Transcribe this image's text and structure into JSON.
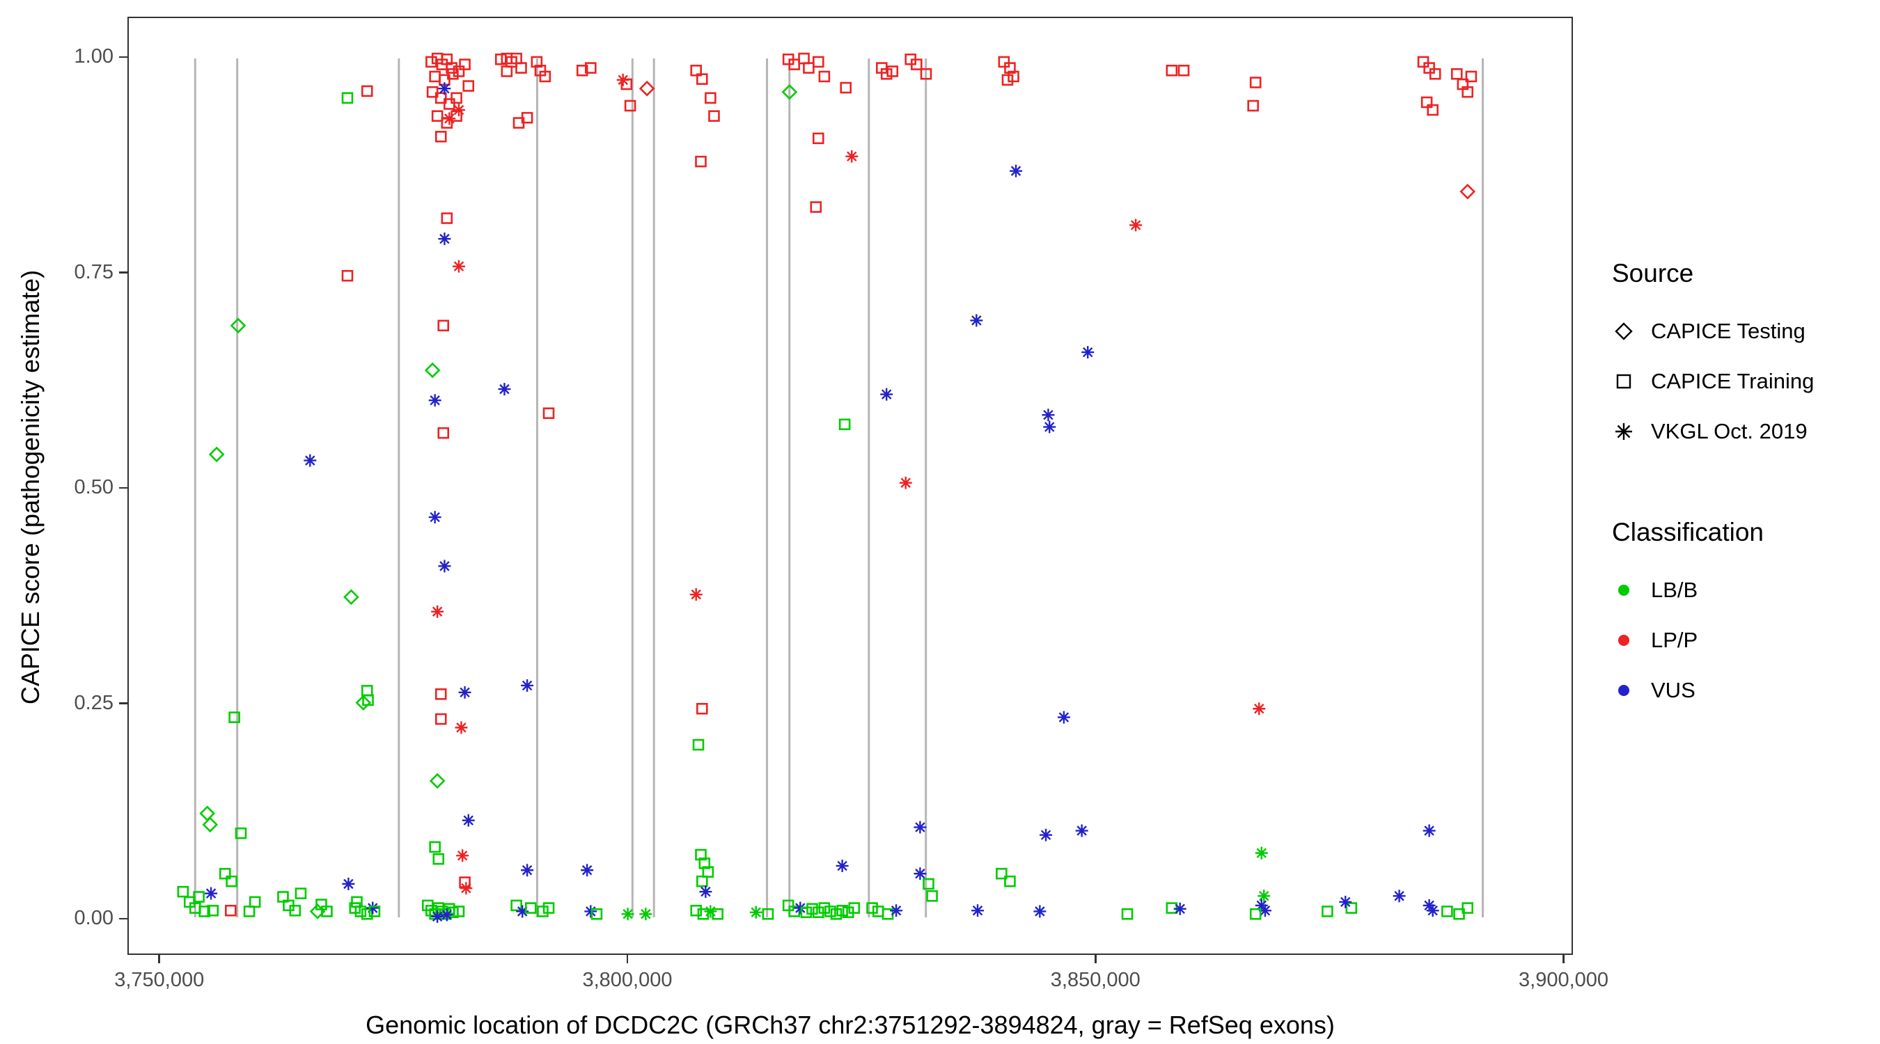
{
  "axes": {
    "x_title": "Genomic location of DCDC2C (GRCh37 chr2:3751292-3894824, gray = RefSeq exons)",
    "y_title": "CAPICE score (pathogenicity estimate)"
  },
  "legend": {
    "source_title": "Source",
    "source_items": [
      {
        "label": "CAPICE Testing",
        "marker": "diamond"
      },
      {
        "label": "CAPICE Training",
        "marker": "square"
      },
      {
        "label": "VKGL Oct. 2019",
        "marker": "asterisk"
      }
    ],
    "class_title": "Classification",
    "class_items": [
      {
        "label": "LB/B",
        "color": "#00CC00"
      },
      {
        "label": "LP/P",
        "color": "#EE2222"
      },
      {
        "label": "VUS",
        "color": "#2222CC"
      }
    ]
  },
  "chart_data": {
    "type": "scatter",
    "title": "",
    "xlabel": "Genomic location of DCDC2C (GRCh37 chr2:3751292-3894824, gray = RefSeq exons)",
    "ylabel": "CAPICE score (pathogenicity estimate)",
    "xlim": [
      3746600,
      3901000
    ],
    "ylim": [
      -0.042,
      1.047
    ],
    "grid": false,
    "legend_position": "right",
    "x_ticks": [
      {
        "v": 3750000,
        "label": "3,750,000"
      },
      {
        "v": 3800000,
        "label": "3,800,000"
      },
      {
        "v": 3850000,
        "label": "3,850,000"
      },
      {
        "v": 3900000,
        "label": "3,900,000"
      }
    ],
    "y_ticks": [
      {
        "v": 0.0,
        "label": "0.00"
      },
      {
        "v": 0.25,
        "label": "0.25"
      },
      {
        "v": 0.5,
        "label": "0.50"
      },
      {
        "v": 0.75,
        "label": "0.75"
      },
      {
        "v": 1.0,
        "label": "1.00"
      }
    ],
    "exon_color": "#b5b5b5",
    "exons_x": [
      3753700,
      3758200,
      3775500,
      3790300,
      3800500,
      3802800,
      3814900,
      3817300,
      3825800,
      3831900,
      3891500
    ],
    "source_codes": {
      "d": "CAPICE Testing",
      "s": "CAPICE Training",
      "a": "VKGL Oct. 2019"
    },
    "marker_shapes": {
      "d": "diamond",
      "s": "square",
      "a": "asterisk"
    },
    "class_codes": {
      "g": "LB/B",
      "r": "LP/P",
      "b": "VUS"
    },
    "colors": {
      "g": "#00CC00",
      "r": "#EE2222",
      "b": "#2222CC"
    },
    "points": [
      [
        3752400,
        0.03,
        "s",
        "g"
      ],
      [
        3753100,
        0.018,
        "s",
        "g"
      ],
      [
        3753700,
        0.011,
        "s",
        "g"
      ],
      [
        3754100,
        0.024,
        "s",
        "g"
      ],
      [
        3754700,
        0.007,
        "s",
        "g"
      ],
      [
        3755400,
        0.028,
        "a",
        "b"
      ],
      [
        3755600,
        0.008,
        "s",
        "g"
      ],
      [
        3755000,
        0.121,
        "d",
        "g"
      ],
      [
        3755300,
        0.108,
        "d",
        "g"
      ],
      [
        3756000,
        0.539,
        "d",
        "g"
      ],
      [
        3758300,
        0.689,
        "d",
        "g"
      ],
      [
        3757900,
        0.233,
        "s",
        "g"
      ],
      [
        3758600,
        0.098,
        "s",
        "g"
      ],
      [
        3756900,
        0.051,
        "s",
        "g"
      ],
      [
        3757600,
        0.042,
        "s",
        "g"
      ],
      [
        3757500,
        0.008,
        "s",
        "r"
      ],
      [
        3759500,
        0.007,
        "s",
        "g"
      ],
      [
        3760100,
        0.018,
        "s",
        "g"
      ],
      [
        3763100,
        0.024,
        "s",
        "g"
      ],
      [
        3763700,
        0.014,
        "s",
        "g"
      ],
      [
        3764400,
        0.008,
        "s",
        "g"
      ],
      [
        3765000,
        0.028,
        "s",
        "g"
      ],
      [
        3766000,
        0.532,
        "a",
        "b"
      ],
      [
        3766800,
        0.007,
        "d",
        "g"
      ],
      [
        3767200,
        0.015,
        "s",
        "g"
      ],
      [
        3767800,
        0.007,
        "s",
        "g"
      ],
      [
        3770000,
        0.954,
        "s",
        "g"
      ],
      [
        3772100,
        0.962,
        "s",
        "r"
      ],
      [
        3770000,
        0.747,
        "s",
        "r"
      ],
      [
        3770400,
        0.373,
        "d",
        "g"
      ],
      [
        3771700,
        0.25,
        "d",
        "g"
      ],
      [
        3772100,
        0.264,
        "s",
        "g"
      ],
      [
        3772200,
        0.253,
        "s",
        "g"
      ],
      [
        3770100,
        0.039,
        "a",
        "b"
      ],
      [
        3770800,
        0.011,
        "s",
        "g"
      ],
      [
        3771400,
        0.007,
        "s",
        "g"
      ],
      [
        3772100,
        0.004,
        "s",
        "g"
      ],
      [
        3772700,
        0.011,
        "a",
        "b"
      ],
      [
        3771000,
        0.018,
        "s",
        "g"
      ],
      [
        3772900,
        0.007,
        "s",
        "g"
      ],
      [
        3778970,
        0.996,
        "s",
        "r"
      ],
      [
        3779620,
        1.0,
        "s",
        "r"
      ],
      [
        3780130,
        0.993,
        "s",
        "r"
      ],
      [
        3780640,
        0.999,
        "s",
        "r"
      ],
      [
        3781150,
        0.989,
        "s",
        "r"
      ],
      [
        3779360,
        0.979,
        "s",
        "r"
      ],
      [
        3780390,
        0.975,
        "s",
        "r"
      ],
      [
        3781280,
        0.982,
        "s",
        "r"
      ],
      [
        3781920,
        0.985,
        "s",
        "r"
      ],
      [
        3779100,
        0.961,
        "s",
        "r"
      ],
      [
        3780000,
        0.954,
        "s",
        "r"
      ],
      [
        3780900,
        0.947,
        "s",
        "r"
      ],
      [
        3781670,
        0.954,
        "s",
        "r"
      ],
      [
        3782560,
        0.993,
        "s",
        "r"
      ],
      [
        3782950,
        0.968,
        "s",
        "r"
      ],
      [
        3779620,
        0.933,
        "s",
        "r"
      ],
      [
        3780640,
        0.925,
        "s",
        "r"
      ],
      [
        3781670,
        0.933,
        "s",
        "r"
      ],
      [
        3780000,
        0.909,
        "s",
        "r"
      ],
      [
        3780390,
        0.965,
        "a",
        "b"
      ],
      [
        3780900,
        0.93,
        "a",
        "r"
      ],
      [
        3781920,
        0.94,
        "a",
        "r"
      ],
      [
        3780640,
        0.814,
        "s",
        "r"
      ],
      [
        3780390,
        0.79,
        "a",
        "b"
      ],
      [
        3781920,
        0.758,
        "a",
        "r"
      ],
      [
        3779100,
        0.637,
        "d",
        "g"
      ],
      [
        3780260,
        0.689,
        "s",
        "r"
      ],
      [
        3779360,
        0.602,
        "a",
        "b"
      ],
      [
        3780260,
        0.564,
        "s",
        "r"
      ],
      [
        3779360,
        0.466,
        "a",
        "b"
      ],
      [
        3780390,
        0.409,
        "a",
        "b"
      ],
      [
        3779620,
        0.356,
        "a",
        "r"
      ],
      [
        3780000,
        0.26,
        "s",
        "r"
      ],
      [
        3782560,
        0.262,
        "a",
        "b"
      ],
      [
        3780000,
        0.231,
        "s",
        "r"
      ],
      [
        3782180,
        0.221,
        "a",
        "r"
      ],
      [
        3779620,
        0.159,
        "d",
        "g"
      ],
      [
        3782950,
        0.113,
        "a",
        "b"
      ],
      [
        3782310,
        0.072,
        "a",
        "r"
      ],
      [
        3779360,
        0.082,
        "s",
        "g"
      ],
      [
        3779740,
        0.068,
        "s",
        "g"
      ],
      [
        3782560,
        0.041,
        "s",
        "r"
      ],
      [
        3782690,
        0.034,
        "a",
        "r"
      ],
      [
        3778590,
        0.014,
        "s",
        "g"
      ],
      [
        3778970,
        0.008,
        "s",
        "g"
      ],
      [
        3779360,
        0.004,
        "s",
        "g"
      ],
      [
        3779740,
        0.011,
        "s",
        "g"
      ],
      [
        3780130,
        0.007,
        "s",
        "g"
      ],
      [
        3780510,
        0.004,
        "s",
        "g"
      ],
      [
        3780900,
        0.01,
        "s",
        "g"
      ],
      [
        3781280,
        0.006,
        "s",
        "g"
      ],
      [
        3779620,
        0.001,
        "a",
        "b"
      ],
      [
        3780640,
        0.003,
        "a",
        "b"
      ],
      [
        3781920,
        0.007,
        "s",
        "g"
      ],
      [
        3786410,
        0.999,
        "s",
        "r"
      ],
      [
        3787050,
        1.0,
        "s",
        "r"
      ],
      [
        3787560,
        0.996,
        "s",
        "r"
      ],
      [
        3788080,
        1.0,
        "s",
        "r"
      ],
      [
        3788590,
        0.989,
        "s",
        "r"
      ],
      [
        3787050,
        0.985,
        "s",
        "r"
      ],
      [
        3789230,
        0.931,
        "s",
        "r"
      ],
      [
        3788330,
        0.925,
        "s",
        "r"
      ],
      [
        3790260,
        0.996,
        "s",
        "r"
      ],
      [
        3790640,
        0.986,
        "s",
        "r"
      ],
      [
        3791150,
        0.979,
        "s",
        "r"
      ],
      [
        3791540,
        0.587,
        "s",
        "r"
      ],
      [
        3786800,
        0.615,
        "a",
        "b"
      ],
      [
        3789230,
        0.27,
        "a",
        "b"
      ],
      [
        3789230,
        0.055,
        "a",
        "b"
      ],
      [
        3788080,
        0.014,
        "s",
        "g"
      ],
      [
        3788720,
        0.007,
        "a",
        "b"
      ],
      [
        3789620,
        0.011,
        "s",
        "g"
      ],
      [
        3790900,
        0.007,
        "s",
        "g"
      ],
      [
        3791540,
        0.011,
        "s",
        "g"
      ],
      [
        3795130,
        0.986,
        "s",
        "r"
      ],
      [
        3796030,
        0.989,
        "s",
        "r"
      ],
      [
        3795640,
        0.055,
        "a",
        "b"
      ],
      [
        3796030,
        0.007,
        "a",
        "b"
      ],
      [
        3796670,
        0.004,
        "s",
        "g"
      ],
      [
        3799490,
        0.975,
        "a",
        "r"
      ],
      [
        3799870,
        0.97,
        "s",
        "r"
      ],
      [
        3800260,
        0.945,
        "s",
        "r"
      ],
      [
        3802050,
        0.965,
        "d",
        "r"
      ],
      [
        3800000,
        0.004,
        "a",
        "g"
      ],
      [
        3801920,
        0.004,
        "a",
        "g"
      ],
      [
        3807310,
        0.986,
        "s",
        "r"
      ],
      [
        3807950,
        0.976,
        "s",
        "r"
      ],
      [
        3808850,
        0.954,
        "s",
        "r"
      ],
      [
        3809230,
        0.933,
        "s",
        "r"
      ],
      [
        3807820,
        0.88,
        "s",
        "r"
      ],
      [
        3807310,
        0.376,
        "a",
        "r"
      ],
      [
        3807950,
        0.243,
        "s",
        "r"
      ],
      [
        3807560,
        0.201,
        "s",
        "g"
      ],
      [
        3807820,
        0.073,
        "s",
        "g"
      ],
      [
        3808210,
        0.063,
        "s",
        "g"
      ],
      [
        3808590,
        0.053,
        "s",
        "g"
      ],
      [
        3807950,
        0.042,
        "s",
        "g"
      ],
      [
        3808330,
        0.03,
        "a",
        "b"
      ],
      [
        3807310,
        0.008,
        "s",
        "g"
      ],
      [
        3808080,
        0.004,
        "s",
        "g"
      ],
      [
        3808850,
        0.007,
        "a",
        "g"
      ],
      [
        3809620,
        0.004,
        "s",
        "g"
      ],
      [
        3813720,
        0.006,
        "a",
        "g"
      ],
      [
        3815000,
        0.004,
        "s",
        "g"
      ],
      [
        3817310,
        0.961,
        "d",
        "g"
      ],
      [
        3817180,
        0.999,
        "s",
        "r"
      ],
      [
        3817820,
        0.993,
        "s",
        "r"
      ],
      [
        3818850,
        1.0,
        "s",
        "r"
      ],
      [
        3819360,
        0.989,
        "s",
        "r"
      ],
      [
        3820390,
        0.996,
        "s",
        "r"
      ],
      [
        3821030,
        0.979,
        "s",
        "r"
      ],
      [
        3823330,
        0.966,
        "s",
        "r"
      ],
      [
        3820390,
        0.907,
        "s",
        "r"
      ],
      [
        3820130,
        0.827,
        "s",
        "r"
      ],
      [
        3823970,
        0.886,
        "a",
        "r"
      ],
      [
        3823210,
        0.574,
        "s",
        "g"
      ],
      [
        3822950,
        0.06,
        "a",
        "b"
      ],
      [
        3817180,
        0.014,
        "s",
        "g"
      ],
      [
        3817820,
        0.007,
        "s",
        "g"
      ],
      [
        3818460,
        0.011,
        "a",
        "b"
      ],
      [
        3819100,
        0.006,
        "s",
        "g"
      ],
      [
        3819740,
        0.01,
        "s",
        "g"
      ],
      [
        3820390,
        0.006,
        "s",
        "g"
      ],
      [
        3821030,
        0.011,
        "s",
        "g"
      ],
      [
        3821670,
        0.007,
        "s",
        "g"
      ],
      [
        3822310,
        0.004,
        "s",
        "g"
      ],
      [
        3822950,
        0.008,
        "s",
        "g"
      ],
      [
        3823590,
        0.006,
        "s",
        "g"
      ],
      [
        3824230,
        0.011,
        "s",
        "g"
      ],
      [
        3827180,
        0.989,
        "s",
        "r"
      ],
      [
        3828330,
        0.985,
        "s",
        "r"
      ],
      [
        3827690,
        0.982,
        "s",
        "r"
      ],
      [
        3827690,
        0.609,
        "a",
        "b"
      ],
      [
        3826150,
        0.011,
        "s",
        "g"
      ],
      [
        3826800,
        0.007,
        "s",
        "g"
      ],
      [
        3827820,
        0.004,
        "s",
        "g"
      ],
      [
        3828720,
        0.008,
        "a",
        "b"
      ],
      [
        3830260,
        0.999,
        "s",
        "r"
      ],
      [
        3830900,
        0.993,
        "s",
        "r"
      ],
      [
        3831920,
        0.982,
        "s",
        "r"
      ],
      [
        3829740,
        0.506,
        "a",
        "r"
      ],
      [
        3831280,
        0.105,
        "a",
        "b"
      ],
      [
        3831280,
        0.051,
        "a",
        "b"
      ],
      [
        3832180,
        0.039,
        "s",
        "g"
      ],
      [
        3832560,
        0.025,
        "s",
        "g"
      ],
      [
        3837310,
        0.695,
        "a",
        "b"
      ],
      [
        3837440,
        0.008,
        "a",
        "b"
      ],
      [
        3840260,
        0.996,
        "s",
        "r"
      ],
      [
        3840900,
        0.989,
        "s",
        "r"
      ],
      [
        3841280,
        0.979,
        "s",
        "r"
      ],
      [
        3840640,
        0.975,
        "s",
        "r"
      ],
      [
        3840000,
        0.051,
        "s",
        "g"
      ],
      [
        3840900,
        0.042,
        "s",
        "g"
      ],
      [
        3841540,
        0.869,
        "a",
        "b"
      ],
      [
        3844100,
        0.007,
        "a",
        "b"
      ],
      [
        3845000,
        0.585,
        "a",
        "b"
      ],
      [
        3845130,
        0.571,
        "a",
        "b"
      ],
      [
        3846670,
        0.233,
        "a",
        "b"
      ],
      [
        3844740,
        0.096,
        "a",
        "b"
      ],
      [
        3848590,
        0.101,
        "a",
        "b"
      ],
      [
        3849230,
        0.658,
        "a",
        "b"
      ],
      [
        3854360,
        0.806,
        "a",
        "r"
      ],
      [
        3853460,
        0.004,
        "s",
        "g"
      ],
      [
        3858210,
        0.986,
        "s",
        "r"
      ],
      [
        3859490,
        0.986,
        "s",
        "r"
      ],
      [
        3858210,
        0.011,
        "s",
        "g"
      ],
      [
        3859100,
        0.01,
        "a",
        "b"
      ],
      [
        3867180,
        0.972,
        "s",
        "r"
      ],
      [
        3866920,
        0.945,
        "s",
        "r"
      ],
      [
        3867560,
        0.243,
        "a",
        "r"
      ],
      [
        3867820,
        0.075,
        "a",
        "g"
      ],
      [
        3868080,
        0.025,
        "a",
        "g"
      ],
      [
        3867820,
        0.014,
        "a",
        "b"
      ],
      [
        3868210,
        0.008,
        "a",
        "b"
      ],
      [
        3867180,
        0.004,
        "s",
        "g"
      ],
      [
        3874870,
        0.007,
        "s",
        "g"
      ],
      [
        3877440,
        0.011,
        "s",
        "g"
      ],
      [
        3876800,
        0.018,
        "a",
        "b"
      ],
      [
        3882560,
        0.025,
        "a",
        "b"
      ],
      [
        3885770,
        0.101,
        "a",
        "b"
      ],
      [
        3885130,
        0.996,
        "s",
        "r"
      ],
      [
        3885770,
        0.989,
        "s",
        "r"
      ],
      [
        3886410,
        0.982,
        "s",
        "r"
      ],
      [
        3885510,
        0.949,
        "s",
        "r"
      ],
      [
        3886150,
        0.94,
        "s",
        "r"
      ],
      [
        3888720,
        0.982,
        "s",
        "r"
      ],
      [
        3889360,
        0.97,
        "s",
        "r"
      ],
      [
        3889870,
        0.961,
        "s",
        "r"
      ],
      [
        3890260,
        0.979,
        "s",
        "r"
      ],
      [
        3889870,
        0.845,
        "d",
        "r"
      ],
      [
        3885770,
        0.014,
        "a",
        "b"
      ],
      [
        3886150,
        0.008,
        "a",
        "b"
      ],
      [
        3887690,
        0.007,
        "s",
        "g"
      ],
      [
        3888970,
        0.004,
        "s",
        "g"
      ],
      [
        3889870,
        0.011,
        "s",
        "g"
      ]
    ]
  }
}
